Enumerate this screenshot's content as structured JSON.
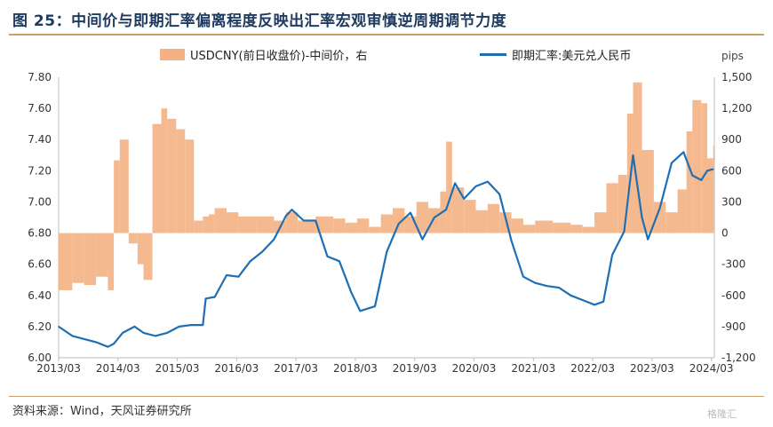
{
  "title": "图 25：中间价与即期汇率偏离程度反映出汇率宏观审慎逆周期调节力度",
  "source": "资料来源：Wind，天风证券研究所",
  "watermark": "格隆汇",
  "colors": {
    "bars": "#f4b183",
    "line": "#1f6fb2",
    "title": "#1f3a5f",
    "rule": "#c8a06a"
  },
  "chart_data": {
    "type": "bar+line",
    "x_tick_labels": [
      "2013/03",
      "2014/03",
      "2015/03",
      "2016/03",
      "2017/03",
      "2018/03",
      "2019/03",
      "2020/03",
      "2021/03",
      "2022/03",
      "2023/03",
      "2024/03"
    ],
    "y_left": {
      "ticks": [
        "6.00",
        "6.20",
        "6.40",
        "6.60",
        "6.80",
        "7.00",
        "7.20",
        "7.40",
        "7.60",
        "7.80"
      ],
      "range": [
        6.0,
        7.8
      ]
    },
    "y_right": {
      "label": "pips",
      "ticks": [
        "-1,200",
        "-900",
        "-600",
        "-300",
        "0",
        "300",
        "600",
        "900",
        "1,200",
        "1,500"
      ],
      "range": [
        -1200,
        1500
      ]
    },
    "legend": [
      "USDCNY(前日收盘价)-中间价，右",
      "即期汇率:美元兑人民币"
    ],
    "series": [
      {
        "name": "USDCNY(前日收盘价)-中间价，右",
        "kind": "bar",
        "axis": "right",
        "x": [
          2013.17,
          2013.4,
          2013.6,
          2013.8,
          2014.0,
          2014.1,
          2014.2,
          2014.35,
          2014.5,
          2014.6,
          2014.75,
          2014.9,
          2015.0,
          2015.15,
          2015.3,
          2015.45,
          2015.6,
          2015.7,
          2015.8,
          2016.0,
          2016.2,
          2016.5,
          2016.8,
          2017.0,
          2017.2,
          2017.5,
          2017.8,
          2018.0,
          2018.2,
          2018.4,
          2018.6,
          2018.8,
          2019.0,
          2019.2,
          2019.4,
          2019.6,
          2019.7,
          2019.8,
          2020.0,
          2020.2,
          2020.4,
          2020.6,
          2020.8,
          2021.0,
          2021.2,
          2021.5,
          2021.8,
          2022.0,
          2022.2,
          2022.4,
          2022.6,
          2022.75,
          2022.85,
          2023.0,
          2023.2,
          2023.4,
          2023.6,
          2023.75,
          2023.85,
          2024.0,
          2024.1,
          2024.2
        ],
        "values": [
          -550,
          -480,
          -500,
          -420,
          -550,
          700,
          900,
          -100,
          -300,
          -450,
          1050,
          1200,
          1100,
          1000,
          900,
          120,
          160,
          180,
          240,
          200,
          160,
          160,
          120,
          200,
          120,
          160,
          140,
          100,
          140,
          60,
          180,
          240,
          160,
          300,
          240,
          400,
          880,
          440,
          320,
          220,
          280,
          200,
          140,
          80,
          120,
          100,
          80,
          60,
          200,
          480,
          560,
          1150,
          1450,
          800,
          300,
          200,
          420,
          980,
          1280,
          1250,
          720,
          840
        ]
      },
      {
        "name": "即期汇率:美元兑人民币",
        "kind": "line",
        "axis": "left",
        "x": [
          2013.17,
          2013.4,
          2013.6,
          2013.8,
          2014.0,
          2014.1,
          2014.25,
          2014.45,
          2014.6,
          2014.8,
          2015.0,
          2015.2,
          2015.4,
          2015.6,
          2015.65,
          2015.8,
          2016.0,
          2016.2,
          2016.4,
          2016.6,
          2016.8,
          2017.0,
          2017.1,
          2017.3,
          2017.5,
          2017.7,
          2017.9,
          2018.1,
          2018.25,
          2018.5,
          2018.7,
          2018.9,
          2019.1,
          2019.3,
          2019.5,
          2019.7,
          2019.85,
          2020.0,
          2020.2,
          2020.4,
          2020.6,
          2020.8,
          2021.0,
          2021.2,
          2021.4,
          2021.6,
          2021.8,
          2022.0,
          2022.2,
          2022.35,
          2022.5,
          2022.7,
          2022.85,
          2023.0,
          2023.1,
          2023.3,
          2023.5,
          2023.7,
          2023.85,
          2024.0,
          2024.1,
          2024.2
        ],
        "values": [
          6.2,
          6.14,
          6.12,
          6.1,
          6.07,
          6.09,
          6.16,
          6.2,
          6.16,
          6.14,
          6.16,
          6.2,
          6.21,
          6.21,
          6.38,
          6.39,
          6.53,
          6.52,
          6.62,
          6.68,
          6.76,
          6.91,
          6.95,
          6.88,
          6.88,
          6.65,
          6.62,
          6.42,
          6.3,
          6.33,
          6.68,
          6.86,
          6.93,
          6.76,
          6.9,
          6.95,
          7.12,
          7.02,
          7.1,
          7.13,
          7.05,
          6.75,
          6.52,
          6.48,
          6.46,
          6.45,
          6.4,
          6.37,
          6.34,
          6.36,
          6.66,
          6.81,
          7.3,
          6.9,
          6.76,
          6.96,
          7.25,
          7.32,
          7.17,
          7.14,
          7.2,
          7.21
        ]
      }
    ]
  }
}
